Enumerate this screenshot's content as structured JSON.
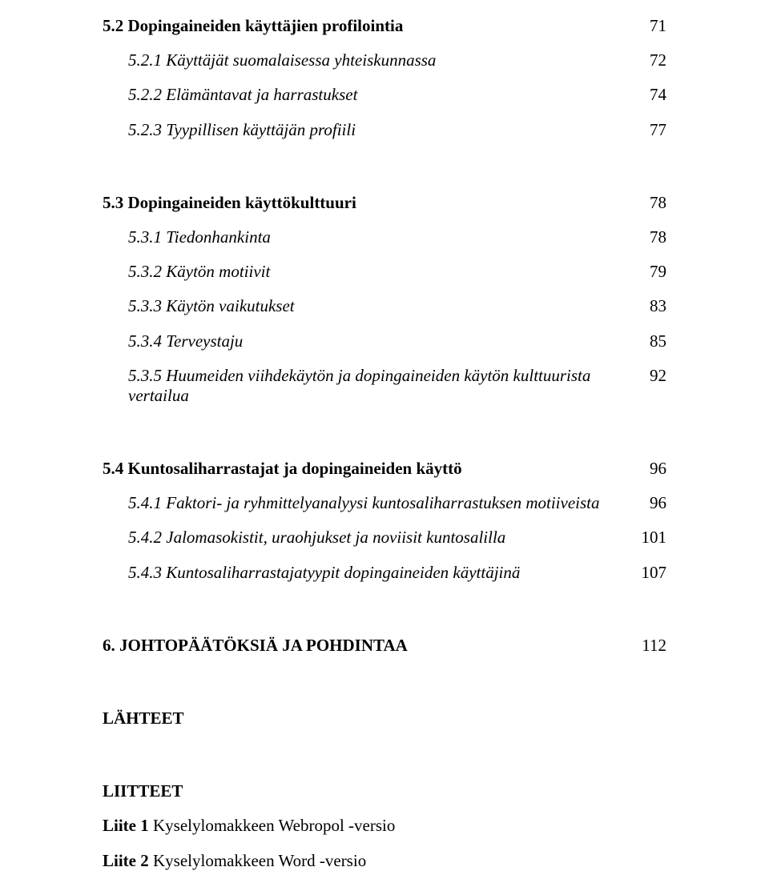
{
  "toc": {
    "s52": {
      "title": "5.2 Dopingaineiden käyttäjien profilointia",
      "page": "71"
    },
    "s521": {
      "title": "5.2.1 Käyttäjät suomalaisessa yhteiskunnassa",
      "page": "72"
    },
    "s522": {
      "title": "5.2.2 Elämäntavat ja harrastukset",
      "page": "74"
    },
    "s523": {
      "title": "5.2.3 Tyypillisen käyttäjän profiili",
      "page": "77"
    },
    "s53": {
      "title": "5.3 Dopingaineiden käyttökulttuuri",
      "page": "78"
    },
    "s531": {
      "title": "5.3.1 Tiedonhankinta",
      "page": "78"
    },
    "s532": {
      "title": "5.3.2 Käytön motiivit",
      "page": "79"
    },
    "s533": {
      "title": "5.3.3 Käytön vaikutukset",
      "page": "83"
    },
    "s534": {
      "title": "5.3.4 Terveystaju",
      "page": "85"
    },
    "s535": {
      "title": "5.3.5 Huumeiden viihdekäytön ja dopingaineiden käytön kulttuurista vertailua",
      "page": "92"
    },
    "s54": {
      "title": "5.4 Kuntosaliharrastajat ja dopingaineiden käyttö",
      "page": "96"
    },
    "s541": {
      "title": "5.4.1 Faktori- ja ryhmittelyanalyysi kuntosaliharrastuksen motiiveista",
      "page": "96"
    },
    "s542": {
      "title": "5.4.2 Jalomasokistit, uraohjukset ja noviisit kuntosalilla",
      "page": "101"
    },
    "s543": {
      "title": "5.4.3 Kuntosaliharrastajatyypit dopingaineiden käyttäjinä",
      "page": "107"
    },
    "s6": {
      "title": "6.  JOHTOPÄÄTÖKSIÄ JA POHDINTAA",
      "page": "112"
    }
  },
  "footer": {
    "lahteet": "LÄHTEET",
    "liitteet": "LIITTEET",
    "liite1": "Liite 1 Kyselylomakkeen Webropol -versio",
    "liite2": "Liite 2 Kyselylomakkeen Word -versio"
  },
  "style": {
    "text_color": "#000000",
    "background_color": "#ffffff",
    "font_family": "Times New Roman",
    "base_font_size_pt": 16
  }
}
